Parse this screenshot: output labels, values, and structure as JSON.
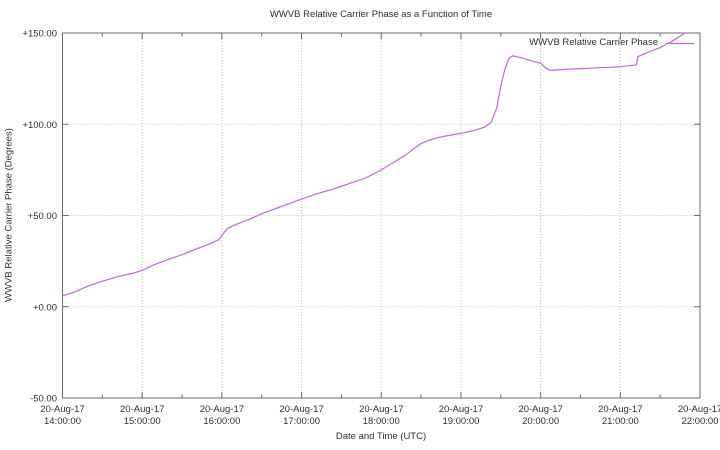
{
  "chart": {
    "title": "WWVB Relative Carrier Phase as a Function of Time",
    "xlabel": "Date and Time (UTC)",
    "ylabel": "WWVB Relative Carrier Phase (Degrees)",
    "legend_label": "WWVB Relative Carrier Phase"
  },
  "chart_data": {
    "type": "line",
    "title": "WWVB Relative Carrier Phase as a Function of Time",
    "xlabel": "Date and Time (UTC)",
    "ylabel": "WWVB Relative Carrier Phase (Degrees)",
    "grid": true,
    "legend_position": "top-right-inside",
    "ylim": [
      -50,
      150
    ],
    "xlim_hours_after_start": [
      0,
      8
    ],
    "x_start": "20-Aug-17 14:00:00 UTC",
    "x_minor_tick_hours": 0.5,
    "y_ticks": [
      {
        "label": "+150.00",
        "value": 150
      },
      {
        "label": "+100.00",
        "value": 100
      },
      {
        "label": "+50.00",
        "value": 50
      },
      {
        "label": "+0.00",
        "value": 0
      },
      {
        "label": "-50.00",
        "value": -50
      }
    ],
    "x_ticks": [
      {
        "date": "20-Aug-17",
        "time": "14:00:00",
        "hour": 0
      },
      {
        "date": "20-Aug-17",
        "time": "15:00:00",
        "hour": 1
      },
      {
        "date": "20-Aug-17",
        "time": "16:00:00",
        "hour": 2
      },
      {
        "date": "20-Aug-17",
        "time": "17:00:00",
        "hour": 3
      },
      {
        "date": "20-Aug-17",
        "time": "18:00:00",
        "hour": 4
      },
      {
        "date": "20-Aug-17",
        "time": "19:00:00",
        "hour": 5
      },
      {
        "date": "20-Aug-17",
        "time": "20:00:00",
        "hour": 6
      },
      {
        "date": "20-Aug-17",
        "time": "21:00:00",
        "hour": 7
      },
      {
        "date": "20-Aug-17",
        "time": "22:00:00",
        "hour": 8
      }
    ],
    "series": [
      {
        "name": "WWVB Relative Carrier Phase",
        "units": "degrees vs hours after 14:00 UTC",
        "points": [
          [
            0,
            6
          ],
          [
            0.15,
            8
          ],
          [
            0.3,
            11
          ],
          [
            0.5,
            14
          ],
          [
            0.7,
            16.5
          ],
          [
            0.9,
            18.5
          ],
          [
            1,
            20
          ],
          [
            1.15,
            23
          ],
          [
            1.3,
            25.5
          ],
          [
            1.5,
            28.5
          ],
          [
            1.7,
            32
          ],
          [
            1.85,
            34.5
          ],
          [
            1.95,
            36.5
          ],
          [
            2,
            39
          ],
          [
            2.07,
            43
          ],
          [
            2.2,
            45.5
          ],
          [
            2.35,
            48
          ],
          [
            2.5,
            51
          ],
          [
            2.75,
            55
          ],
          [
            3,
            59
          ],
          [
            3.2,
            62
          ],
          [
            3.4,
            64.5
          ],
          [
            3.6,
            67.5
          ],
          [
            3.8,
            70.5
          ],
          [
            4,
            75
          ],
          [
            4.15,
            79
          ],
          [
            4.3,
            83
          ],
          [
            4.5,
            89.5
          ],
          [
            4.65,
            92
          ],
          [
            4.8,
            93.5
          ],
          [
            5,
            95
          ],
          [
            5.2,
            97
          ],
          [
            5.3,
            98.5
          ],
          [
            5.38,
            101
          ],
          [
            5.45,
            109
          ],
          [
            5.5,
            121
          ],
          [
            5.55,
            130
          ],
          [
            5.6,
            136
          ],
          [
            5.65,
            137.5
          ],
          [
            5.75,
            136.5
          ],
          [
            5.9,
            134.5
          ],
          [
            6,
            133.5
          ],
          [
            6.06,
            131
          ],
          [
            6.12,
            129.5
          ],
          [
            6.3,
            130
          ],
          [
            6.5,
            130.5
          ],
          [
            6.75,
            131
          ],
          [
            7,
            131.5
          ],
          [
            7.1,
            132
          ],
          [
            7.2,
            132.5
          ],
          [
            7.22,
            137
          ],
          [
            7.35,
            139.5
          ],
          [
            7.5,
            142
          ],
          [
            7.65,
            145.5
          ],
          [
            7.81,
            150
          ]
        ]
      }
    ],
    "colors": {
      "line": "#c763e3",
      "grid": "#bdbdbd",
      "axis": "#6a6a6a",
      "text": "#2e2e2e",
      "background": "#ffffff"
    }
  }
}
